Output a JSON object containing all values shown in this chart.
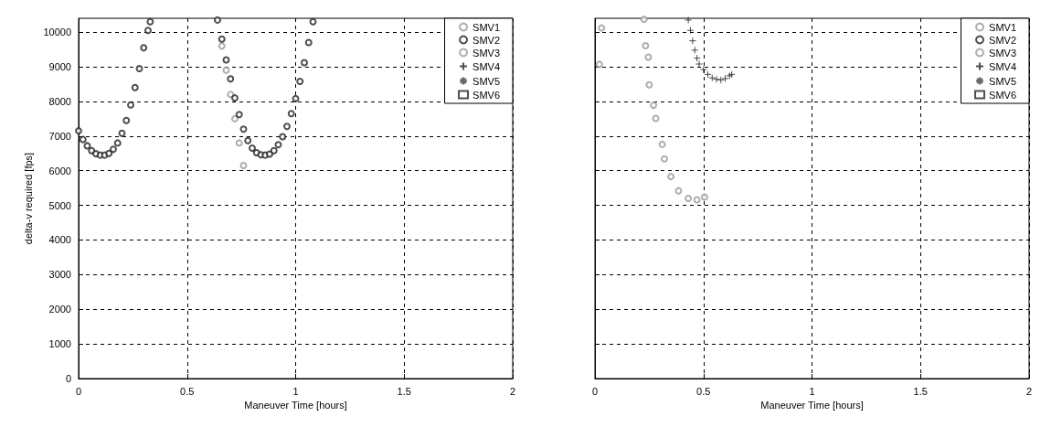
{
  "chart_data": [
    {
      "type": "scatter",
      "xlabel": "Maneuver Time [hours]",
      "ylabel": "delta-v required [fps]",
      "xlim": [
        0,
        2
      ],
      "xticks": [
        0,
        0.5,
        1,
        1.5,
        2
      ],
      "ylim": [
        0,
        10400
      ],
      "yticks": [
        0,
        1000,
        2000,
        3000,
        4000,
        5000,
        6000,
        7000,
        8000,
        9000,
        10000
      ],
      "grid": true,
      "legend": "top right",
      "series": [
        {
          "name": "SMV1",
          "color": "#9a9a9a",
          "marker": "circle",
          "x": [
            0.66,
            0.68,
            0.7,
            0.72,
            0.74,
            0.76
          ],
          "values": [
            9600,
            8900,
            8200,
            7500,
            6800,
            6150
          ]
        },
        {
          "name": "SMV2",
          "color": "#222222",
          "marker": "circle",
          "x": [
            0,
            0.02,
            0.04,
            0.06,
            0.08,
            0.1,
            0.12,
            0.14,
            0.16,
            0.18,
            0.2,
            0.22,
            0.24,
            0.26,
            0.28,
            0.3,
            0.32,
            0.33,
            0.64,
            0.66,
            0.68,
            0.7,
            0.72,
            0.74,
            0.76,
            0.78,
            0.8,
            0.82,
            0.84,
            0.86,
            0.88,
            0.9,
            0.92,
            0.94,
            0.96,
            0.98,
            1,
            1.02,
            1.04,
            1.06,
            1.08
          ],
          "values": [
            7150,
            6900,
            6720,
            6580,
            6490,
            6450,
            6450,
            6500,
            6620,
            6800,
            7080,
            7450,
            7900,
            8400,
            8950,
            9550,
            10050,
            10300,
            10350,
            9800,
            9200,
            8650,
            8100,
            7620,
            7200,
            6870,
            6650,
            6520,
            6460,
            6450,
            6480,
            6580,
            6750,
            6980,
            7280,
            7650,
            8080,
            8580,
            9120,
            9700,
            10300
          ]
        },
        {
          "name": "SMV3",
          "color": "#9a9a9a",
          "marker": "circle"
        },
        {
          "name": "SMV4",
          "color": "#222222",
          "marker": "cross"
        },
        {
          "name": "SMV5",
          "color": "#444444",
          "marker": "star"
        },
        {
          "name": "SMV6",
          "color": "#222222",
          "marker": "square"
        }
      ]
    },
    {
      "type": "scatter",
      "xlabel": "Maneuver Time [hours]",
      "xlim": [
        0,
        2
      ],
      "xticks": [
        0,
        0.5,
        1,
        1.5,
        2
      ],
      "ylim": [
        0,
        10400
      ],
      "yticks": [
        0,
        1000,
        2000,
        3000,
        4000,
        5000,
        6000,
        7000,
        8000,
        9000,
        10000
      ],
      "grid": true,
      "legend": "top right",
      "tick_labels": "x",
      "series": [
        {
          "name": "SMV1",
          "color": "#9a9a9a",
          "marker": "circle",
          "x": [
            0.02,
            0.03,
            0.226,
            0.233,
            0.246,
            0.25,
            0.27,
            0.28,
            0.31,
            0.32,
            0.35,
            0.385,
            0.43,
            0.47,
            0.505
          ],
          "values": [
            9070,
            10120,
            10370,
            9610,
            9280,
            8480,
            7890,
            7510,
            6760,
            6340,
            5830,
            5420,
            5200,
            5160,
            5240
          ]
        },
        {
          "name": "SMV2",
          "color": "#222222",
          "marker": "circle"
        },
        {
          "name": "SMV3",
          "color": "#9a9a9a",
          "marker": "circle"
        },
        {
          "name": "SMV4",
          "color": "#222222",
          "marker": "cross",
          "x": [
            0.43,
            0.44,
            0.45,
            0.46,
            0.47,
            0.48,
            0.5,
            0.52,
            0.54,
            0.56,
            0.58,
            0.6,
            0.62,
            0.63
          ],
          "values": [
            10350,
            10050,
            9750,
            9480,
            9250,
            9080,
            8920,
            8780,
            8680,
            8640,
            8620,
            8660,
            8740,
            8780
          ]
        },
        {
          "name": "SMV5",
          "color": "#444444",
          "marker": "star"
        },
        {
          "name": "SMV6",
          "color": "#222222",
          "marker": "square"
        }
      ]
    }
  ]
}
